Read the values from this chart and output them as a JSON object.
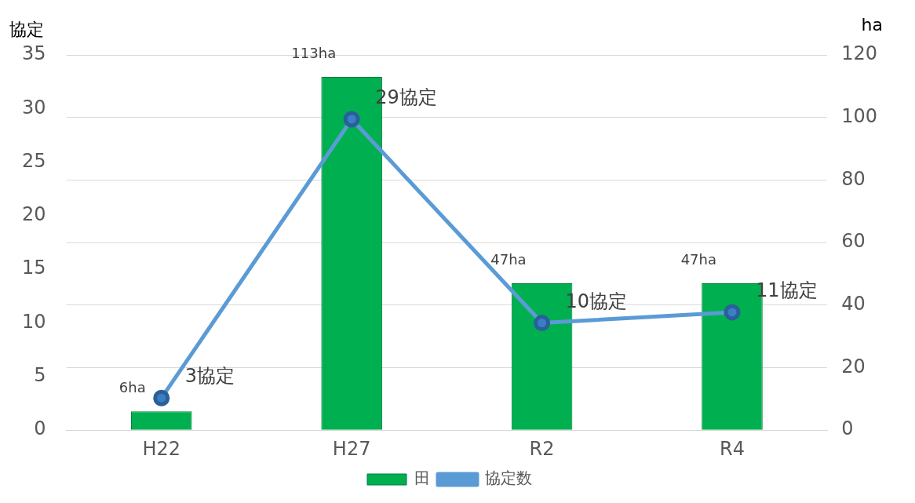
{
  "chart_data": {
    "type": "bar",
    "ylabel": "協定",
    "y2label": "ha",
    "categories": [
      "H22",
      "H27",
      "R2",
      "R4"
    ],
    "series": [
      {
        "name": "田",
        "axis": "y2",
        "color": "#00b050",
        "values": [
          6,
          113,
          47,
          47
        ],
        "value_labels": [
          "6ha",
          "113ha",
          "47ha",
          "47ha"
        ]
      },
      {
        "name": "協定数",
        "type": "line",
        "axis": "y",
        "color": "#5b9bd5",
        "marker": "circle",
        "values": [
          3,
          29,
          10,
          11
        ],
        "value_labels": [
          "3協定",
          "29協定",
          "10協定",
          "11協定"
        ]
      }
    ],
    "ylim": [
      0,
      35
    ],
    "yticks": [
      0,
      5,
      10,
      15,
      20,
      25,
      30,
      35
    ],
    "y2lim": [
      0,
      120
    ],
    "y2ticks": [
      0,
      20,
      40,
      60,
      80,
      100,
      120
    ],
    "grid": true,
    "legend": "bottom"
  }
}
